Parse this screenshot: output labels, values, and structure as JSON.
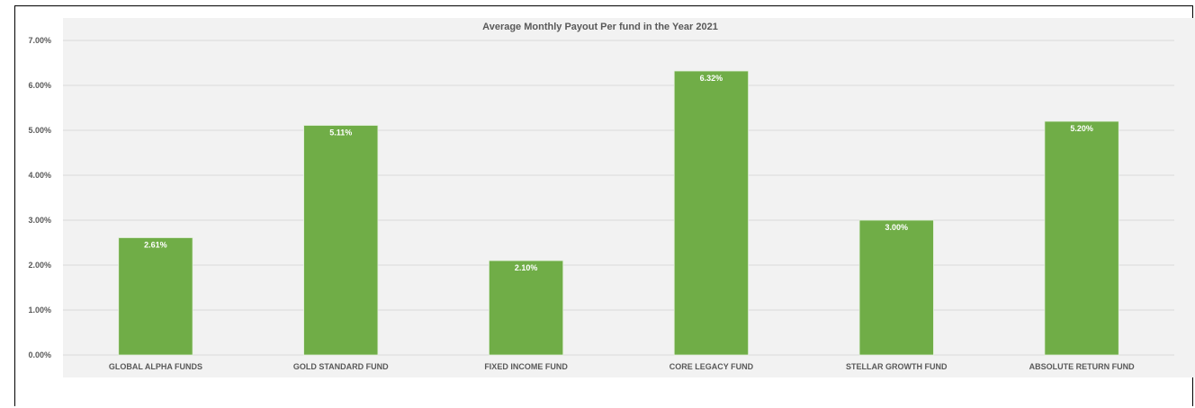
{
  "chart_data": {
    "type": "bar",
    "title": "Average Monthly Payout Per fund in the Year 2021",
    "categories": [
      "GLOBAL ALPHA FUNDS",
      "GOLD STANDARD FUND",
      "FIXED INCOME FUND",
      "CORE LEGACY FUND",
      "STELLAR GROWTH FUND",
      "ABSOLUTE RETURN FUND"
    ],
    "values": [
      2.61,
      5.11,
      2.1,
      6.32,
      3.0,
      5.2
    ],
    "data_labels": [
      "2.61%",
      "5.11%",
      "2.10%",
      "6.32%",
      "3.00%",
      "5.20%"
    ],
    "ylim": [
      0,
      7
    ],
    "yticks": [
      "0.00%",
      "1.00%",
      "2.00%",
      "3.00%",
      "4.00%",
      "5.00%",
      "6.00%",
      "7.00%"
    ],
    "xlabel": "",
    "ylabel": "",
    "grid": true,
    "legend": "none",
    "colors": {
      "bar": "#70ad47",
      "plot_background": "#f2f2f2",
      "gridline": "#d9d9d9",
      "text": "#595959"
    }
  }
}
